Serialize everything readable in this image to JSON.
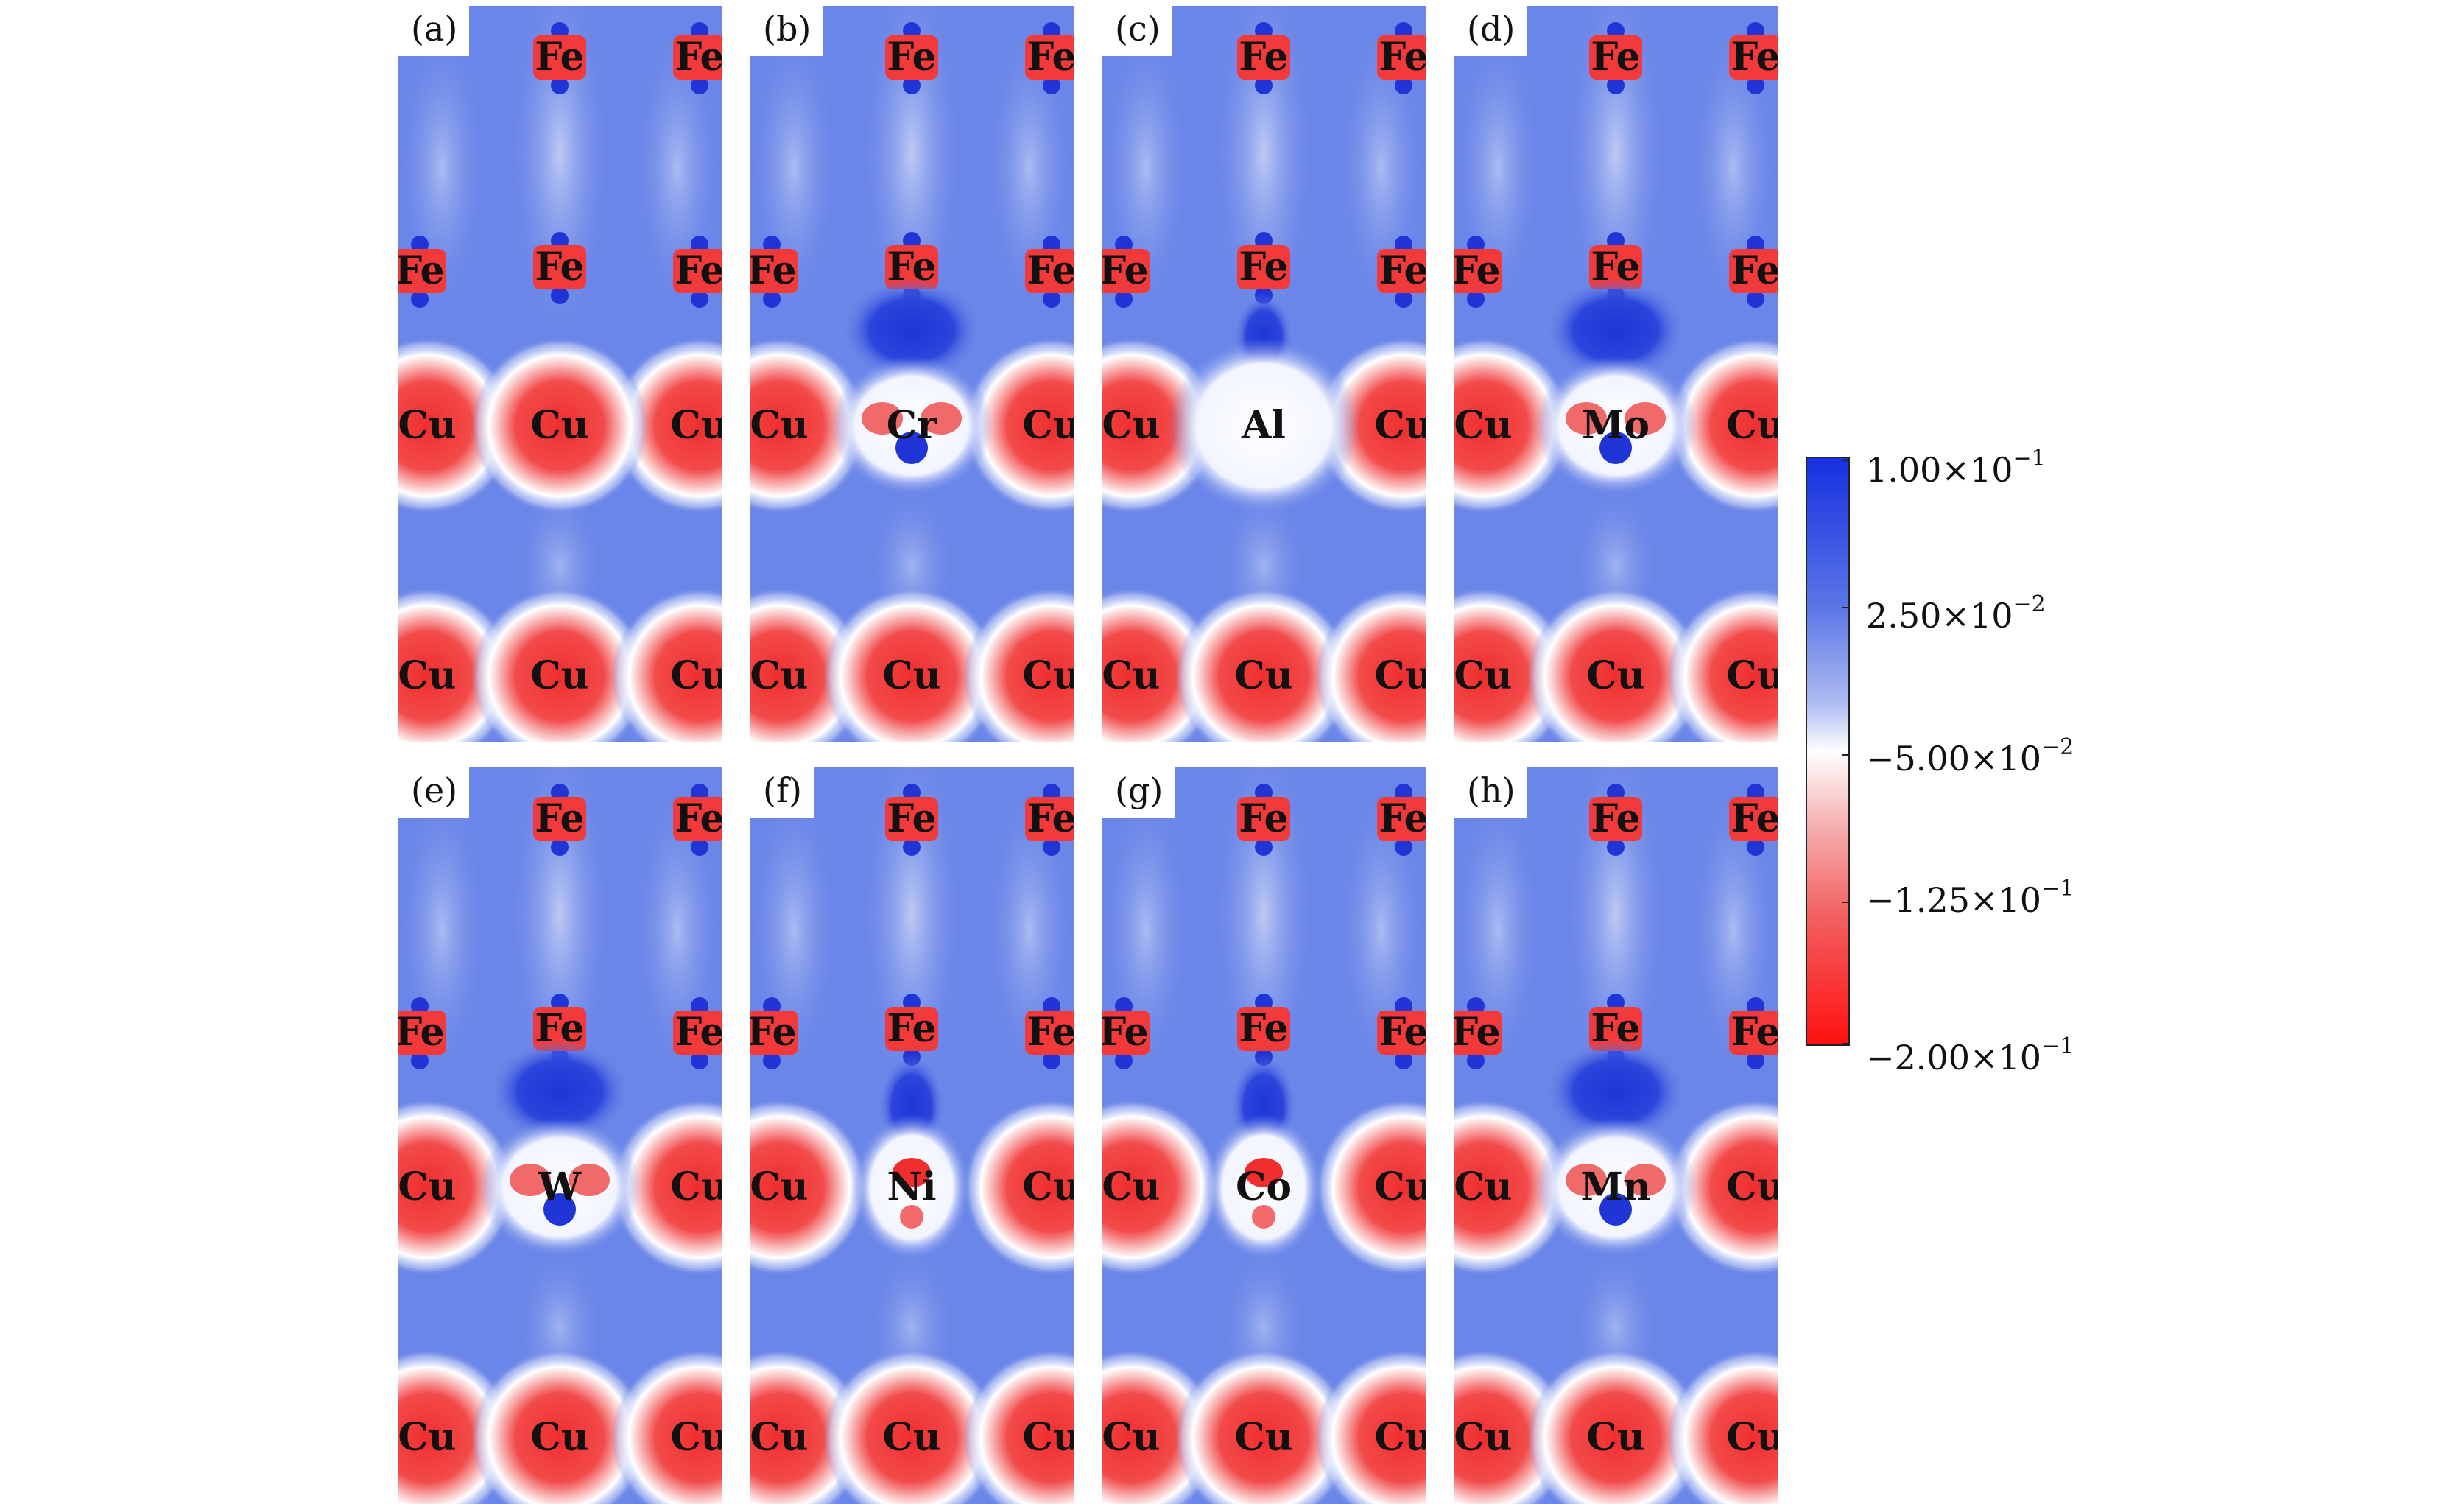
{
  "panels": [
    {
      "label": "(a)",
      "atoms": {
        "top_center": "Fe",
        "top_right": "Fe",
        "mid_left": "Fe",
        "mid_center": "Fe",
        "mid_right": "Fe",
        "cu_left": "Cu",
        "cu_center": "Cu",
        "cu_right": "Cu",
        "bot_left": "Cu",
        "bot_center": "Cu",
        "bot_right": "Cu"
      },
      "dopant": "",
      "dopant_style": "pure"
    },
    {
      "label": "(b)",
      "atoms": {
        "top_center": "Fe",
        "top_right": "Fe",
        "mid_left": "Fe",
        "mid_center": "Fe",
        "mid_right": "Fe",
        "cu_left": "Cu",
        "cu_center": "",
        "cu_right": "Cu",
        "bot_left": "Cu",
        "bot_center": "Cu",
        "bot_right": "Cu"
      },
      "dopant": "Cr",
      "dopant_style": "blue-lobe"
    },
    {
      "label": "(c)",
      "atoms": {
        "top_center": "Fe",
        "top_right": "Fe",
        "mid_left": "Fe",
        "mid_center": "Fe",
        "mid_right": "Fe",
        "cu_left": "Cu",
        "cu_center": "",
        "cu_right": "Cu",
        "bot_left": "Cu",
        "bot_center": "Cu",
        "bot_right": "Cu"
      },
      "dopant": "Al",
      "dopant_style": "white-halo"
    },
    {
      "label": "(d)",
      "atoms": {
        "top_center": "Fe",
        "top_right": "Fe",
        "mid_left": "Fe",
        "mid_center": "Fe",
        "mid_right": "Fe",
        "cu_left": "Cu",
        "cu_center": "",
        "cu_right": "Cu",
        "bot_left": "Cu",
        "bot_center": "Cu",
        "bot_right": "Cu"
      },
      "dopant": "Mo",
      "dopant_style": "blue-lobe"
    },
    {
      "label": "(e)",
      "atoms": {
        "top_center": "Fe",
        "top_right": "Fe",
        "mid_left": "Fe",
        "mid_center": "Fe",
        "mid_right": "Fe",
        "cu_left": "Cu",
        "cu_center": "",
        "cu_right": "Cu",
        "bot_left": "Cu",
        "bot_center": "Cu",
        "bot_right": "Cu"
      },
      "dopant": "W",
      "dopant_style": "blue-lobe"
    },
    {
      "label": "(f)",
      "atoms": {
        "top_center": "Fe",
        "top_right": "Fe",
        "mid_left": "Fe",
        "mid_center": "Fe",
        "mid_right": "Fe",
        "cu_left": "Cu",
        "cu_center": "",
        "cu_right": "Cu",
        "bot_left": "Cu",
        "bot_center": "Cu",
        "bot_right": "Cu"
      },
      "dopant": "Ni",
      "dopant_style": "red-core"
    },
    {
      "label": "(g)",
      "atoms": {
        "top_center": "Fe",
        "top_right": "Fe",
        "mid_left": "Fe",
        "mid_center": "Fe",
        "mid_right": "Fe",
        "cu_left": "Cu",
        "cu_center": "",
        "cu_right": "Cu",
        "bot_left": "Cu",
        "bot_center": "Cu",
        "bot_right": "Cu"
      },
      "dopant": "Co",
      "dopant_style": "red-core"
    },
    {
      "label": "(h)",
      "atoms": {
        "top_center": "Fe",
        "top_right": "Fe",
        "mid_left": "Fe",
        "mid_center": "Fe",
        "mid_right": "Fe",
        "cu_left": "Cu",
        "cu_center": "",
        "cu_right": "Cu",
        "bot_left": "Cu",
        "bot_center": "Cu",
        "bot_right": "Cu"
      },
      "dopant": "Mn",
      "dopant_style": "blue-lobe"
    }
  ],
  "colorbar": {
    "ticks": [
      {
        "mantissa": "1.00",
        "exp": "−1"
      },
      {
        "mantissa": "2.50",
        "exp": "−2"
      },
      {
        "mantissa": "−5.00",
        "exp": "−2"
      },
      {
        "mantissa": "−1.25",
        "exp": "−1"
      },
      {
        "mantissa": "−2.00",
        "exp": "−1"
      }
    ],
    "times": "×10",
    "colors": {
      "max": "#1530e0",
      "mid_blue": "#7d95ea",
      "zero": "#ffffff",
      "mid_red": "#f27a7a",
      "min": "#ff1a1a"
    }
  },
  "colors": {
    "background": "#6a86e8",
    "lobe_blue": "#2238d8",
    "atom_red": "#f23a3a",
    "halo_white": "#f4f5ff"
  }
}
